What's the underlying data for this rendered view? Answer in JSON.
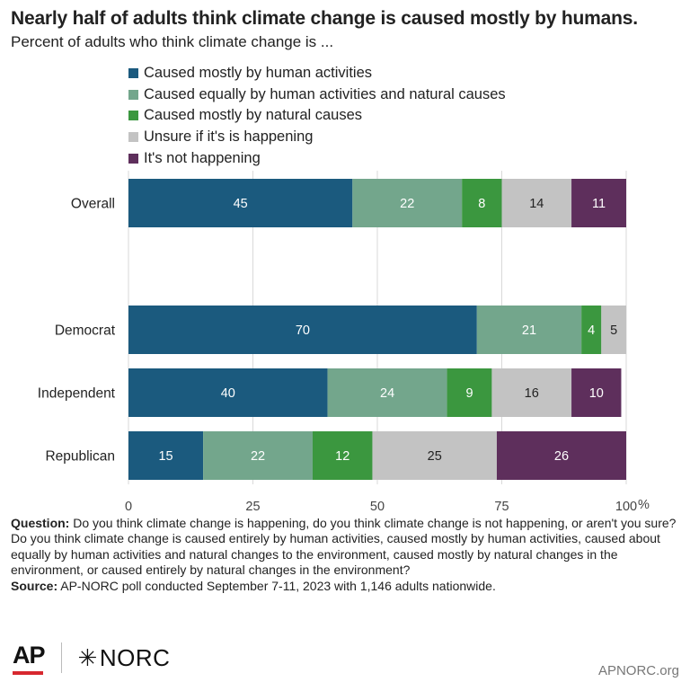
{
  "title": "Nearly half of adults think climate change is caused mostly by humans.",
  "subtitle": "Percent of adults who think climate change is ...",
  "chart_data": {
    "type": "bar",
    "orientation": "horizontal",
    "stacked": true,
    "categories": [
      "Overall",
      "Democrat",
      "Independent",
      "Republican"
    ],
    "series": [
      {
        "name": "Caused mostly by human activities",
        "color": "#1b5a7e",
        "values": [
          45,
          70,
          40,
          15
        ]
      },
      {
        "name": "Caused equally by human activities and natural causes",
        "color": "#73a68c",
        "values": [
          22,
          21,
          24,
          22
        ]
      },
      {
        "name": "Caused mostly by natural causes",
        "color": "#3b973f",
        "values": [
          8,
          4,
          9,
          12
        ]
      },
      {
        "name": "Unsure if it's is happening",
        "color": "#c3c3c3",
        "values": [
          14,
          5,
          16,
          25
        ]
      },
      {
        "name": "It's not happening",
        "color": "#5e2f5c",
        "values": [
          11,
          0,
          10,
          26
        ]
      }
    ],
    "xlim": [
      0,
      100
    ],
    "xticks": [
      "0",
      "25",
      "50",
      "75",
      "100"
    ],
    "x_unit": "%",
    "grid": true,
    "legend_position": "top"
  },
  "notes": {
    "question_label": "Question:",
    "question_1": "Do you think climate change is happening, do you think climate change is not happening, or aren't you sure?",
    "question_2": "Do you think climate change is caused entirely by human activities, caused mostly by human activities, caused about equally by human activities and natural changes to the environment, caused mostly by natural changes in the environment, or caused entirely by natural changes in the environment?",
    "source_label": "Source:",
    "source": "AP-NORC poll conducted September 7-11, 2023 with 1,146 adults nationwide."
  },
  "footer": {
    "ap_logo": "AP",
    "norc_star": "✳",
    "norc_logo": "NORC",
    "site": "APNORC.org"
  }
}
